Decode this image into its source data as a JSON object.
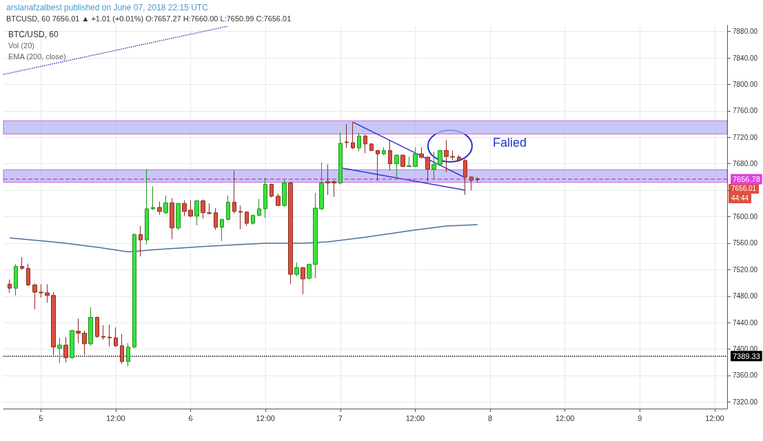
{
  "chart_data": {
    "type": "candlestick",
    "title": "arslanafzalbest published on June 07, 2018 22:15 UTC",
    "subtitle": "BTCUSD, 60 7656.01 ▲ +1.01 (+0.01%) O:7657.27 H:7660.00 L:7650.99 C:7656.01",
    "x": [
      "2018-06-04T19:00",
      "2018-06-04T20:00",
      "2018-06-04T21:00",
      "2018-06-04T22:00",
      "2018-06-04T23:00",
      "2018-06-05T00:00",
      "2018-06-05T01:00",
      "2018-06-05T02:00",
      "2018-06-05T03:00",
      "2018-06-05T04:00",
      "2018-06-05T05:00",
      "2018-06-05T06:00",
      "2018-06-05T07:00",
      "2018-06-05T08:00",
      "2018-06-05T09:00",
      "2018-06-05T10:00",
      "2018-06-05T11:00",
      "2018-06-05T12:00",
      "2018-06-05T13:00",
      "2018-06-05T14:00",
      "2018-06-05T15:00",
      "2018-06-05T16:00",
      "2018-06-05T17:00",
      "2018-06-05T18:00",
      "2018-06-05T19:00",
      "2018-06-05T20:00",
      "2018-06-05T21:00",
      "2018-06-05T22:00",
      "2018-06-05T23:00",
      "2018-06-06T00:00",
      "2018-06-06T01:00",
      "2018-06-06T02:00",
      "2018-06-06T03:00",
      "2018-06-06T04:00",
      "2018-06-06T05:00",
      "2018-06-06T06:00",
      "2018-06-06T07:00",
      "2018-06-06T08:00",
      "2018-06-06T09:00",
      "2018-06-06T10:00",
      "2018-06-06T11:00",
      "2018-06-06T12:00",
      "2018-06-06T13:00",
      "2018-06-06T14:00",
      "2018-06-06T15:00",
      "2018-06-06T16:00",
      "2018-06-06T17:00",
      "2018-06-06T18:00",
      "2018-06-06T19:00",
      "2018-06-06T20:00",
      "2018-06-06T21:00",
      "2018-06-06T22:00",
      "2018-06-06T23:00",
      "2018-06-07T00:00",
      "2018-06-07T01:00",
      "2018-06-07T02:00",
      "2018-06-07T03:00",
      "2018-06-07T04:00",
      "2018-06-07T05:00",
      "2018-06-07T06:00",
      "2018-06-07T07:00",
      "2018-06-07T08:00",
      "2018-06-07T09:00",
      "2018-06-07T10:00",
      "2018-06-07T11:00",
      "2018-06-07T12:00",
      "2018-06-07T13:00",
      "2018-06-07T14:00",
      "2018-06-07T15:00",
      "2018-06-07T16:00",
      "2018-06-07T17:00",
      "2018-06-07T18:00",
      "2018-06-07T19:00",
      "2018-06-07T20:00",
      "2018-06-07T21:00",
      "2018-06-07T22:00"
    ],
    "ohlc": [
      [
        7498,
        7505,
        7485,
        7492
      ],
      [
        7492,
        7528,
        7481,
        7525
      ],
      [
        7525,
        7539,
        7520,
        7522
      ],
      [
        7522,
        7529,
        7495,
        7497
      ],
      [
        7497,
        7499,
        7460,
        7486
      ],
      [
        7486,
        7498,
        7478,
        7485
      ],
      [
        7485,
        7498,
        7470,
        7481
      ],
      [
        7481,
        7486,
        7391,
        7403
      ],
      [
        7401,
        7417,
        7379,
        7406
      ],
      [
        7406,
        7418,
        7380,
        7387
      ],
      [
        7387,
        7429,
        7385,
        7428
      ],
      [
        7427,
        7446,
        7409,
        7424
      ],
      [
        7424,
        7428,
        7391,
        7408
      ],
      [
        7408,
        7463,
        7405,
        7448
      ],
      [
        7448,
        7449,
        7417,
        7419
      ],
      [
        7419,
        7436,
        7414,
        7418
      ],
      [
        7418,
        7437,
        7404,
        7417
      ],
      [
        7417,
        7433,
        7403,
        7405
      ],
      [
        7405,
        7423,
        7378,
        7381
      ],
      [
        7381,
        7409,
        7374,
        7403
      ],
      [
        7403,
        7575,
        7401,
        7573
      ],
      [
        7573,
        7586,
        7540,
        7565
      ],
      [
        7565,
        7672,
        7558,
        7612
      ],
      [
        7612,
        7646,
        7610,
        7614
      ],
      [
        7614,
        7623,
        7603,
        7608
      ],
      [
        7606,
        7632,
        7604,
        7621
      ],
      [
        7621,
        7628,
        7566,
        7583
      ],
      [
        7583,
        7621,
        7580,
        7620
      ],
      [
        7620,
        7625,
        7601,
        7608
      ],
      [
        7610,
        7625,
        7599,
        7601
      ],
      [
        7601,
        7625,
        7587,
        7624
      ],
      [
        7624,
        7626,
        7597,
        7606
      ],
      [
        7606,
        7620,
        7603,
        7605
      ],
      [
        7606,
        7613,
        7580,
        7584
      ],
      [
        7584,
        7597,
        7563,
        7596
      ],
      [
        7596,
        7632,
        7594,
        7622
      ],
      [
        7622,
        7670,
        7605,
        7608
      ],
      [
        7608,
        7617,
        7581,
        7607
      ],
      [
        7607,
        7608,
        7586,
        7590
      ],
      [
        7590,
        7603,
        7588,
        7602
      ],
      [
        7602,
        7627,
        7601,
        7612
      ],
      [
        7612,
        7659,
        7598,
        7649
      ],
      [
        7649,
        7650,
        7629,
        7631
      ],
      [
        7631,
        7635,
        7616,
        7617
      ],
      [
        7617,
        7656,
        7615,
        7651
      ],
      [
        7651,
        7653,
        7498,
        7513
      ],
      [
        7513,
        7531,
        7510,
        7523
      ],
      [
        7523,
        7524,
        7483,
        7506
      ],
      [
        7507,
        7529,
        7505,
        7528
      ],
      [
        7528,
        7636,
        7507,
        7613
      ],
      [
        7612,
        7682,
        7610,
        7651
      ],
      [
        7653,
        7679,
        7633,
        7651
      ],
      [
        7653,
        7655,
        7630,
        7651
      ],
      [
        7651,
        7727,
        7649,
        7711
      ],
      [
        7713,
        7740,
        7704,
        7712
      ],
      [
        7712,
        7743,
        7702,
        7704
      ],
      [
        7704,
        7727,
        7699,
        7722
      ],
      [
        7722,
        7724,
        7696,
        7710
      ],
      [
        7710,
        7711,
        7699,
        7700
      ],
      [
        7700,
        7701,
        7654,
        7695
      ],
      [
        7695,
        7705,
        7693,
        7700
      ],
      [
        7700,
        7716,
        7670,
        7680
      ],
      [
        7680,
        7694,
        7660,
        7693
      ],
      [
        7693,
        7694,
        7675,
        7676
      ],
      [
        7676,
        7691,
        7675,
        7677
      ],
      [
        7676,
        7705,
        7675,
        7695
      ],
      [
        7695,
        7705,
        7688,
        7690
      ],
      [
        7690,
        7691,
        7653,
        7672
      ],
      [
        7672,
        7698,
        7657,
        7679
      ],
      [
        7679,
        7701,
        7678,
        7700
      ],
      [
        7700,
        7716,
        7667,
        7691
      ],
      [
        7691,
        7700,
        7685,
        7690
      ],
      [
        7690,
        7693,
        7683,
        7685
      ],
      [
        7685,
        7687,
        7633,
        7660
      ],
      [
        7660,
        7661,
        7640,
        7655
      ],
      [
        7657.27,
        7660,
        7650.99,
        7656.01
      ]
    ],
    "series": [
      {
        "type": "line",
        "color": "#4a6f9a",
        "line_style": "solid",
        "x": [
          "2018-06-04T19:00",
          "2018-06-05T03:00",
          "2018-06-05T09:00",
          "2018-06-05T14:00",
          "2018-06-05T18:00",
          "2018-06-06T02:00",
          "2018-06-06T12:00",
          "2018-06-06T18:00",
          "2018-06-06T22:00",
          "2018-06-07T04:00",
          "2018-06-07T12:00",
          "2018-06-07T17:00",
          "2018-06-07T22:00"
        ],
        "values": [
          7568,
          7561,
          7554,
          7547,
          7550,
          7555,
          7560,
          7560,
          7562,
          7569,
          7580,
          7586,
          7588
        ]
      },
      {
        "type": "line",
        "color": "#3a3ab0",
        "line_style": "dotted",
        "x": [
          "2018-06-04T18:00",
          "2018-06-06T06:00"
        ],
        "values": [
          7815,
          7888
        ]
      },
      {
        "type": "line",
        "color": "#3333cc",
        "line_style": "solid",
        "x": [
          "2018-06-07T02:00",
          "2018-06-07T20:00"
        ],
        "values": [
          7743,
          7659
        ]
      },
      {
        "type": "line",
        "color": "#3333cc",
        "line_style": "solid",
        "x": [
          "2018-06-07T00:00",
          "2018-06-07T20:00"
        ],
        "values": [
          7674,
          7640
        ]
      }
    ],
    "xlim": [
      "2018-06-04T18:00",
      "2018-06-09T14:00"
    ],
    "xticks": [
      {
        "value": "2018-06-05T00:00",
        "label": "5"
      },
      {
        "value": "2018-06-05T12:00",
        "label": "12:00"
      },
      {
        "value": "2018-06-06T00:00",
        "label": "6"
      },
      {
        "value": "2018-06-06T12:00",
        "label": "12:00"
      },
      {
        "value": "2018-06-07T00:00",
        "label": "7"
      },
      {
        "value": "2018-06-07T12:00",
        "label": "12:00"
      },
      {
        "value": "2018-06-08T00:00",
        "label": "8"
      },
      {
        "value": "2018-06-08T12:00",
        "label": "12:00"
      },
      {
        "value": "2018-06-09T00:00",
        "label": "9"
      },
      {
        "value": "2018-06-09T12:00",
        "label": "12:00"
      }
    ],
    "ylim": [
      7310,
      7889
    ],
    "yticks": [
      {
        "value": 7320,
        "label": "7320.00"
      },
      {
        "value": 7360,
        "label": "7360.00"
      },
      {
        "value": 7400,
        "label": "7400.00"
      },
      {
        "value": 7440,
        "label": "7440.00"
      },
      {
        "value": 7480,
        "label": "7480.00"
      },
      {
        "value": 7520,
        "label": "7520.00"
      },
      {
        "value": 7560,
        "label": "7560.00"
      },
      {
        "value": 7600,
        "label": "7600.00"
      },
      {
        "value": 7640,
        "label": null
      },
      {
        "value": 7680,
        "label": "7680.00"
      },
      {
        "value": 7720,
        "label": "7720.00"
      },
      {
        "value": 7760,
        "label": "7760.00"
      },
      {
        "value": 7800,
        "label": "7800.00"
      },
      {
        "value": 7840,
        "label": "7840.00"
      },
      {
        "value": 7880,
        "label": "7880.00"
      }
    ],
    "grid": true,
    "ref_lines": [
      {
        "axis": "y",
        "value": 7656.78,
        "label": "7656.78",
        "color": "#e040e0",
        "line_style": "dashed"
      },
      {
        "axis": "y",
        "value": 7389.33,
        "label": "7389.33",
        "color": "#000000",
        "line_style": "dotted"
      }
    ],
    "bands": [
      {
        "axis": "y",
        "from": 7725,
        "to": 7745,
        "color": "#b4b4f4"
      },
      {
        "axis": "y",
        "from": 7652,
        "to": 7671,
        "color": "#b4b4f4"
      }
    ],
    "annotations": [
      "BTC/USD, 60",
      "Vol (20)",
      "EMA (200, close)",
      "Falied",
      "7656.01",
      "44:44"
    ]
  }
}
